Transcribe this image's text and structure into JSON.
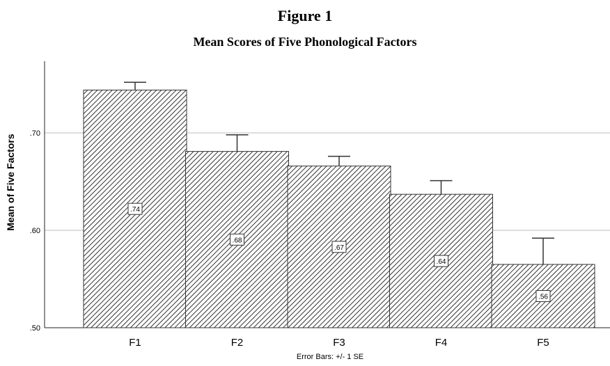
{
  "figure_label": "Figure 1",
  "chart_data": {
    "type": "bar",
    "title": "Mean Scores of Five Phonological Factors",
    "xlabel": "",
    "ylabel": "Mean of Five Factors",
    "categories": [
      "F1",
      "F2",
      "F3",
      "F4",
      "F5"
    ],
    "values": [
      0.744,
      0.681,
      0.666,
      0.637,
      0.565
    ],
    "data_labels": [
      ".74",
      ".68",
      ".67",
      ".64",
      ".56"
    ],
    "error_upper": [
      0.752,
      0.698,
      0.676,
      0.651,
      0.592
    ],
    "ylim": [
      0.5,
      0.76
    ],
    "yticks": [
      0.5,
      0.6,
      0.7
    ],
    "ytick_labels": [
      ".50",
      ".60",
      ".70"
    ],
    "grid": true,
    "bar_pattern": "diagonal-hatch",
    "bar_color": "#333333",
    "footnote": "Error Bars: +/- 1 SE"
  }
}
